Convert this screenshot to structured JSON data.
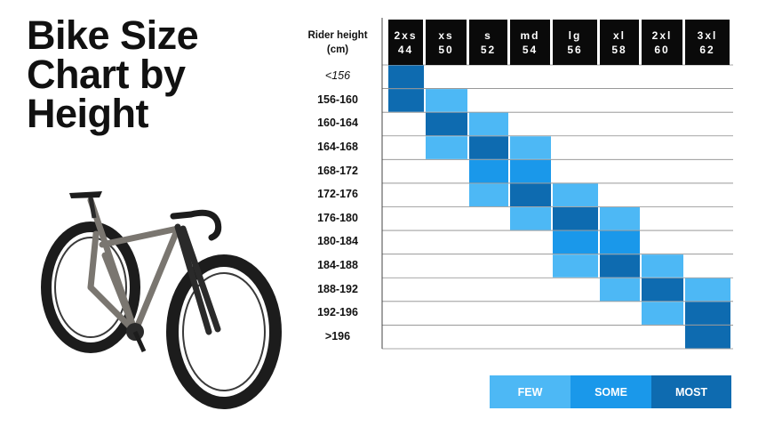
{
  "title_lines": [
    "Bike Size",
    "Chart by",
    "Height"
  ],
  "header": {
    "rider_height_line1": "Rider height",
    "rider_height_line2": "(cm)"
  },
  "colors": {
    "few": "#4db8f5",
    "some": "#1a98ea",
    "most": "#0e6bb0",
    "header_bg": "#0a0a0a"
  },
  "legend": [
    {
      "label": "FEW",
      "level": "few"
    },
    {
      "label": "SOME",
      "level": "some"
    },
    {
      "label": "MOST",
      "level": "most"
    }
  ],
  "chart_data": {
    "type": "heatmap",
    "title": "Bike Size Chart by Height",
    "x_label": "Rider height (cm)",
    "columns": [
      {
        "size": "2xs",
        "number": "44"
      },
      {
        "size": "xs",
        "number": "50"
      },
      {
        "size": "s",
        "number": "52"
      },
      {
        "size": "md",
        "number": "54"
      },
      {
        "size": "lg",
        "number": "56"
      },
      {
        "size": "xl",
        "number": "58"
      },
      {
        "size": "2xl",
        "number": "60"
      },
      {
        "size": "3xl",
        "number": "62"
      }
    ],
    "rows": [
      "<156",
      "156-160",
      "160-164",
      "164-168",
      "168-172",
      "172-176",
      "176-180",
      "180-184",
      "184-188",
      "188-192",
      "192-196",
      ">196"
    ],
    "cells": [
      {
        "row": "<156",
        "column": "2xs",
        "level": "most"
      },
      {
        "row": "156-160",
        "column": "2xs",
        "level": "most"
      },
      {
        "row": "156-160",
        "column": "xs",
        "level": "few"
      },
      {
        "row": "160-164",
        "column": "xs",
        "level": "most"
      },
      {
        "row": "160-164",
        "column": "s",
        "level": "few"
      },
      {
        "row": "164-168",
        "column": "xs",
        "level": "few"
      },
      {
        "row": "164-168",
        "column": "s",
        "level": "most"
      },
      {
        "row": "164-168",
        "column": "md",
        "level": "few"
      },
      {
        "row": "168-172",
        "column": "s",
        "level": "some"
      },
      {
        "row": "168-172",
        "column": "md",
        "level": "some"
      },
      {
        "row": "172-176",
        "column": "s",
        "level": "few"
      },
      {
        "row": "172-176",
        "column": "md",
        "level": "most"
      },
      {
        "row": "172-176",
        "column": "lg",
        "level": "few"
      },
      {
        "row": "176-180",
        "column": "md",
        "level": "few"
      },
      {
        "row": "176-180",
        "column": "lg",
        "level": "most"
      },
      {
        "row": "176-180",
        "column": "xl",
        "level": "few"
      },
      {
        "row": "180-184",
        "column": "lg",
        "level": "some"
      },
      {
        "row": "180-184",
        "column": "xl",
        "level": "some"
      },
      {
        "row": "184-188",
        "column": "lg",
        "level": "few"
      },
      {
        "row": "184-188",
        "column": "xl",
        "level": "most"
      },
      {
        "row": "184-188",
        "column": "2xl",
        "level": "few"
      },
      {
        "row": "188-192",
        "column": "xl",
        "level": "few"
      },
      {
        "row": "188-192",
        "column": "2xl",
        "level": "most"
      },
      {
        "row": "188-192",
        "column": "3xl",
        "level": "few"
      },
      {
        "row": "192-196",
        "column": "2xl",
        "level": "few"
      },
      {
        "row": "192-196",
        "column": "3xl",
        "level": "most"
      },
      {
        "row": ">196",
        "column": "3xl",
        "level": "most"
      }
    ]
  }
}
